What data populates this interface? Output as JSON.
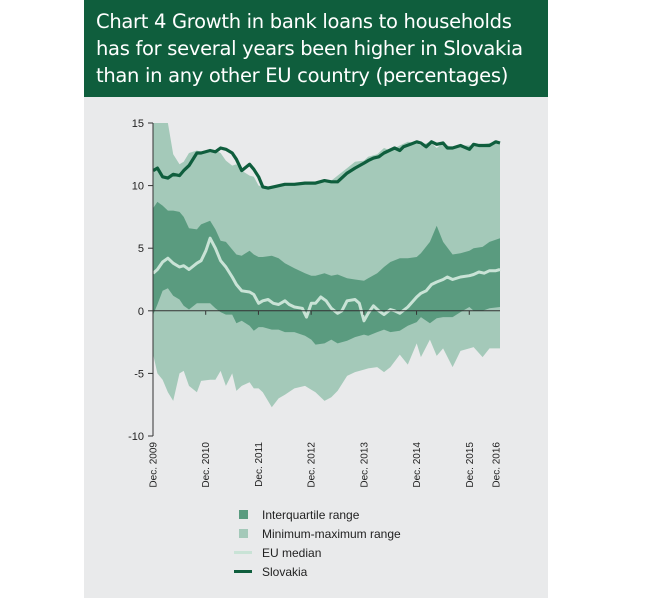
{
  "title": "Chart 4 Growth in bank loans to households has for several years been higher in Slovakia than in any other EU country (percentages)",
  "chart_data": {
    "type": "area",
    "ylim": [
      -10,
      15
    ],
    "y_ticks": [
      15,
      10,
      5,
      0,
      -5,
      -10
    ],
    "x_range": [
      2009.917,
      2016.5
    ],
    "x_ticks": [
      {
        "x": 2009.917,
        "label": "Dec. 2009"
      },
      {
        "x": 2010.917,
        "label": "Dec. 2010"
      },
      {
        "x": 2011.917,
        "label": "Dec. 2011"
      },
      {
        "x": 2012.917,
        "label": "Dec. 2012"
      },
      {
        "x": 2013.917,
        "label": "Dec. 2013"
      },
      {
        "x": 2014.917,
        "label": "Dec. 2014"
      },
      {
        "x": 2015.917,
        "label": "Dec. 2015"
      },
      {
        "x": 2016.917,
        "label": "Dec. 2016"
      }
    ],
    "grid": false,
    "legend_position": "bottom",
    "colors": {
      "interquartile": "#5a9b7f",
      "minmax": "#a4c9b9",
      "eu_median": "#c9e3d6",
      "slovakia": "#0f5e3d"
    },
    "series": [
      {
        "name": "Slovakia",
        "x": [
          2009.92,
          2010.0,
          2010.1,
          2010.2,
          2010.3,
          2010.42,
          2010.5,
          2010.6,
          2010.75,
          2010.83,
          2011.0,
          2011.1,
          2011.2,
          2011.3,
          2011.42,
          2011.5,
          2011.6,
          2011.75,
          2011.83,
          2011.92,
          2012.0,
          2012.1,
          2012.2,
          2012.42,
          2012.6,
          2012.8,
          2012.92,
          2013.0,
          2013.17,
          2013.3,
          2013.42,
          2013.6,
          2013.75,
          2013.92,
          2014.0,
          2014.1,
          2014.2,
          2014.3,
          2014.5,
          2014.6,
          2014.67,
          2014.8,
          2014.92,
          2015.0,
          2015.1,
          2015.2,
          2015.3,
          2015.42,
          2015.5,
          2015.6,
          2015.75,
          2015.92,
          2016.0,
          2016.1,
          2016.2,
          2016.3,
          2016.42,
          2016.5
        ],
        "values": [
          11.2,
          11.4,
          10.7,
          10.6,
          10.9,
          10.8,
          11.2,
          11.6,
          12.6,
          12.6,
          12.8,
          12.7,
          13.0,
          12.9,
          12.6,
          12.1,
          11.2,
          11.7,
          11.3,
          10.7,
          9.9,
          9.8,
          9.9,
          10.1,
          10.1,
          10.2,
          10.2,
          10.2,
          10.4,
          10.3,
          10.3,
          11.0,
          11.4,
          11.8,
          12.0,
          12.2,
          12.3,
          12.6,
          13.0,
          12.8,
          13.1,
          13.3,
          13.5,
          13.4,
          13.1,
          13.5,
          13.3,
          13.4,
          13.0,
          13.0,
          13.2,
          12.9,
          13.3,
          13.2,
          13.2,
          13.2,
          13.5,
          13.4
        ]
      },
      {
        "name": "EU median",
        "x": [
          2009.92,
          2010.0,
          2010.1,
          2010.2,
          2010.3,
          2010.42,
          2010.5,
          2010.6,
          2010.75,
          2010.83,
          2010.92,
          2011.0,
          2011.1,
          2011.2,
          2011.3,
          2011.42,
          2011.5,
          2011.6,
          2011.75,
          2011.83,
          2011.92,
          2012.0,
          2012.1,
          2012.2,
          2012.3,
          2012.42,
          2012.5,
          2012.6,
          2012.75,
          2012.83,
          2012.92,
          2013.0,
          2013.1,
          2013.2,
          2013.3,
          2013.42,
          2013.5,
          2013.6,
          2013.75,
          2013.83,
          2013.92,
          2014.0,
          2014.1,
          2014.2,
          2014.3,
          2014.42,
          2014.5,
          2014.6,
          2014.75,
          2014.92,
          2015.0,
          2015.1,
          2015.2,
          2015.3,
          2015.42,
          2015.5,
          2015.6,
          2015.75,
          2015.92,
          2016.0,
          2016.1,
          2016.2,
          2016.3,
          2016.42,
          2016.5
        ],
        "values": [
          3.0,
          3.3,
          3.9,
          4.2,
          3.8,
          3.5,
          3.6,
          3.3,
          3.8,
          4.0,
          4.8,
          5.8,
          5.0,
          4.0,
          3.5,
          2.7,
          2.1,
          1.6,
          1.5,
          1.3,
          0.6,
          0.8,
          0.9,
          0.6,
          0.5,
          0.8,
          0.5,
          0.3,
          0.2,
          -0.5,
          0.6,
          0.6,
          1.1,
          0.8,
          0.2,
          -0.2,
          0.0,
          0.8,
          0.9,
          0.6,
          -0.8,
          -0.2,
          0.4,
          0.0,
          -0.3,
          0.1,
          0.0,
          -0.2,
          0.3,
          1.1,
          1.4,
          1.6,
          2.1,
          2.3,
          2.5,
          2.7,
          2.5,
          2.7,
          2.8,
          2.9,
          3.1,
          3.0,
          3.2,
          3.2,
          3.3
        ]
      },
      {
        "name": "Interquartile range",
        "x": [
          2009.92,
          2010.0,
          2010.1,
          2010.2,
          2010.3,
          2010.42,
          2010.5,
          2010.6,
          2010.75,
          2010.83,
          2011.0,
          2011.1,
          2011.2,
          2011.3,
          2011.42,
          2011.5,
          2011.6,
          2011.75,
          2011.83,
          2011.92,
          2012.0,
          2012.17,
          2012.3,
          2012.42,
          2012.6,
          2012.8,
          2012.92,
          2013.0,
          2013.17,
          2013.3,
          2013.42,
          2013.6,
          2013.75,
          2013.92,
          2014.0,
          2014.17,
          2014.3,
          2014.42,
          2014.6,
          2014.75,
          2014.92,
          2015.0,
          2015.17,
          2015.3,
          2015.42,
          2015.6,
          2015.75,
          2015.92,
          2016.0,
          2016.17,
          2016.3,
          2016.5
        ],
        "upper": [
          8.2,
          8.7,
          8.4,
          8.0,
          8.0,
          7.9,
          7.5,
          6.6,
          6.5,
          6.9,
          7.2,
          6.5,
          5.6,
          5.5,
          4.9,
          4.5,
          4.4,
          4.8,
          4.5,
          4.3,
          4.3,
          4.4,
          4.2,
          3.8,
          3.4,
          3.0,
          2.8,
          2.8,
          3.0,
          2.8,
          2.9,
          2.6,
          2.5,
          2.4,
          2.6,
          3.0,
          3.5,
          3.9,
          4.2,
          4.2,
          4.3,
          4.6,
          5.5,
          6.8,
          5.5,
          4.5,
          4.6,
          4.8,
          5.0,
          5.1,
          5.5,
          5.8
        ],
        "lower": [
          -0.3,
          0.5,
          1.6,
          1.8,
          1.2,
          0.9,
          0.4,
          0.1,
          0.6,
          0.6,
          0.6,
          0.2,
          -0.1,
          -0.3,
          -0.3,
          -1.0,
          -0.8,
          -1.2,
          -1.6,
          -1.3,
          -1.3,
          -1.5,
          -1.5,
          -1.7,
          -1.7,
          -2.0,
          -2.3,
          -2.7,
          -2.6,
          -2.3,
          -2.6,
          -2.4,
          -2.1,
          -1.9,
          -2.0,
          -1.7,
          -1.5,
          -1.7,
          -1.6,
          -1.2,
          -0.9,
          -0.5,
          -1.0,
          -0.6,
          -0.5,
          -0.5,
          -0.1,
          0.3,
          0.0,
          0.0,
          0.2,
          0.3
        ]
      },
      {
        "name": "Minimum-maximum range",
        "x": [
          2009.92,
          2010.0,
          2010.1,
          2010.2,
          2010.3,
          2010.42,
          2010.5,
          2010.6,
          2010.75,
          2010.83,
          2011.0,
          2011.1,
          2011.2,
          2011.3,
          2011.42,
          2011.5,
          2011.6,
          2011.75,
          2011.83,
          2011.92,
          2012.0,
          2012.17,
          2012.3,
          2012.42,
          2012.6,
          2012.8,
          2012.92,
          2013.0,
          2013.17,
          2013.3,
          2013.42,
          2013.6,
          2013.75,
          2013.92,
          2014.0,
          2014.17,
          2014.3,
          2014.42,
          2014.6,
          2014.75,
          2014.92,
          2015.0,
          2015.17,
          2015.3,
          2015.42,
          2015.6,
          2015.75,
          2015.92,
          2016.0,
          2016.17,
          2016.3,
          2016.5
        ],
        "upper": [
          15.0,
          15.0,
          15.0,
          15.0,
          12.5,
          11.7,
          11.9,
          12.6,
          12.8,
          12.7,
          12.8,
          12.8,
          12.6,
          12.0,
          11.6,
          11.7,
          11.2,
          10.8,
          10.7,
          10.0,
          9.9,
          9.9,
          10.0,
          10.1,
          10.2,
          10.3,
          10.2,
          10.3,
          10.3,
          10.4,
          10.8,
          11.4,
          11.9,
          12.0,
          12.3,
          12.5,
          13.0,
          12.8,
          13.2,
          13.5,
          13.4,
          13.2,
          13.5,
          13.0,
          13.4,
          13.0,
          13.2,
          13.2,
          13.2,
          13.3,
          13.4,
          13.5
        ],
        "lower": [
          -3.5,
          -5.0,
          -5.5,
          -6.5,
          -7.2,
          -5.0,
          -4.8,
          -6.0,
          -6.5,
          -5.6,
          -5.5,
          -5.5,
          -4.8,
          -6.0,
          -5.0,
          -6.4,
          -6.0,
          -5.7,
          -6.2,
          -6.2,
          -6.5,
          -7.7,
          -7.0,
          -6.7,
          -6.2,
          -6.0,
          -6.3,
          -6.5,
          -7.2,
          -6.9,
          -6.4,
          -5.2,
          -4.9,
          -4.7,
          -4.6,
          -4.5,
          -4.9,
          -4.5,
          -3.5,
          -4.3,
          -2.6,
          -3.7,
          -2.3,
          -3.6,
          -3.0,
          -4.5,
          -3.2,
          -3.0,
          -2.9,
          -3.7,
          -3.0,
          -3.0
        ]
      }
    ]
  },
  "legend": [
    {
      "label": "Interquartile range",
      "kind": "square",
      "color": "#5a9b7f"
    },
    {
      "label": "Minimum-maximum range",
      "kind": "square",
      "color": "#a4c9b9"
    },
    {
      "label": "EU median",
      "kind": "line",
      "color": "#c9e3d6"
    },
    {
      "label": "Slovakia",
      "kind": "line",
      "color": "#0f5e3d"
    }
  ]
}
